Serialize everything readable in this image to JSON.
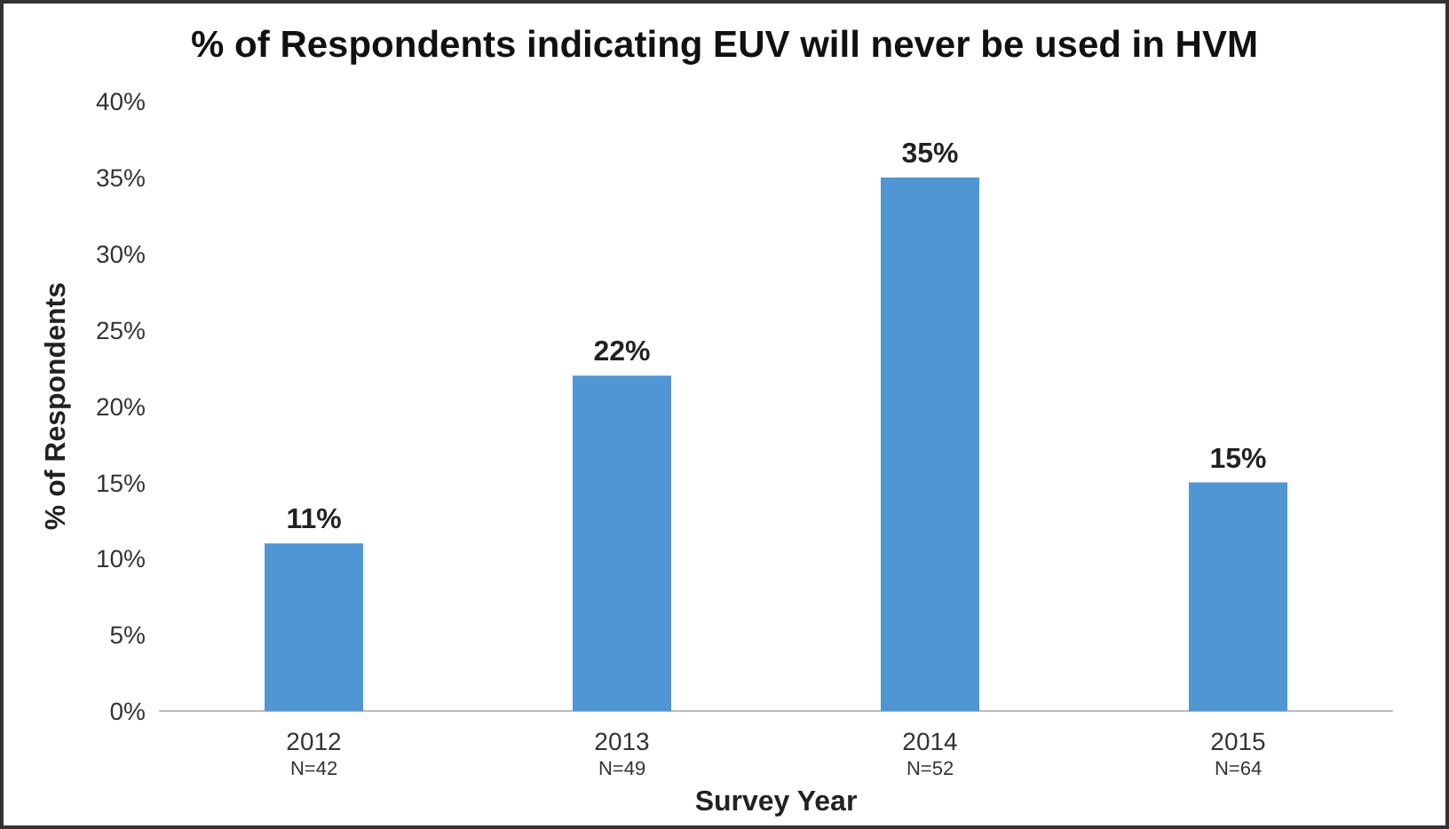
{
  "chart_data": {
    "type": "bar",
    "title": "% of Respondents indicating EUV will never be used in HVM",
    "xlabel": "Survey Year",
    "ylabel": "% of Respondents",
    "categories": [
      "2012\nN=42",
      "2013\nN=49",
      "2014\nN=52",
      "2015\nN=64"
    ],
    "values": [
      11,
      22,
      35,
      15
    ],
    "color": "#4f96d3",
    "ylim": [
      0,
      40
    ],
    "yticks": [
      {
        "value": 0,
        "label": "0%"
      },
      {
        "value": 5,
        "label": "5%"
      },
      {
        "value": 10,
        "label": "10%"
      },
      {
        "value": 15,
        "label": "15%"
      },
      {
        "value": 20,
        "label": "20%"
      },
      {
        "value": 25,
        "label": "25%"
      },
      {
        "value": 30,
        "label": "30%"
      },
      {
        "value": 35,
        "label": "35%"
      },
      {
        "value": 40,
        "label": "40%"
      }
    ],
    "value_labels": [
      "11%",
      "22%",
      "35%",
      "15%"
    ]
  }
}
